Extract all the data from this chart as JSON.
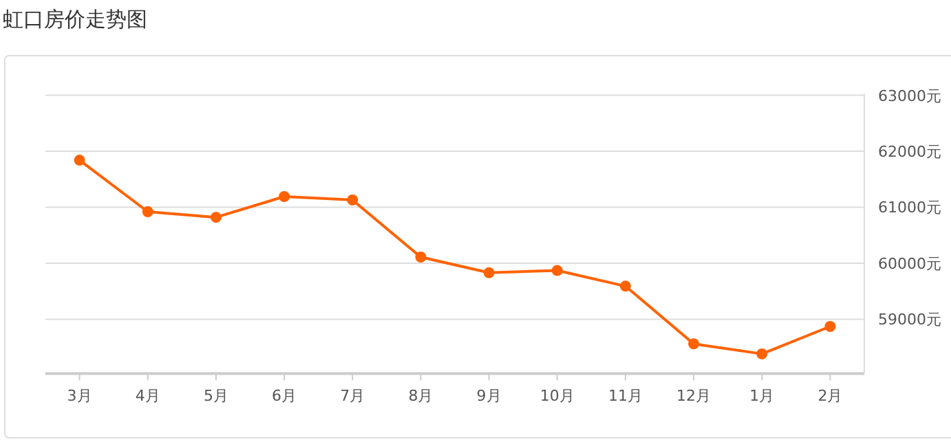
{
  "chart_data": {
    "type": "line",
    "title": "虹口房价走势图",
    "categories": [
      "3月",
      "4月",
      "5月",
      "6月",
      "7月",
      "8月",
      "9月",
      "10月",
      "11月",
      "12月",
      "1月",
      "2月"
    ],
    "series": [
      {
        "color": "#ff6200",
        "values": [
          61840,
          60920,
          60820,
          61190,
          61130,
          60110,
          59830,
          59870,
          59590,
          58560,
          58380,
          58870
        ]
      }
    ],
    "ylim": [
      58030,
      63000
    ],
    "yticks": [
      {
        "value": 59000,
        "label": "59000元"
      },
      {
        "value": 60000,
        "label": "60000元"
      },
      {
        "value": 61000,
        "label": "61000元"
      },
      {
        "value": 62000,
        "label": "62000元"
      },
      {
        "value": 63000,
        "label": "63000元"
      }
    ],
    "grid": "y",
    "marker": "circle",
    "line_style": "solid"
  }
}
